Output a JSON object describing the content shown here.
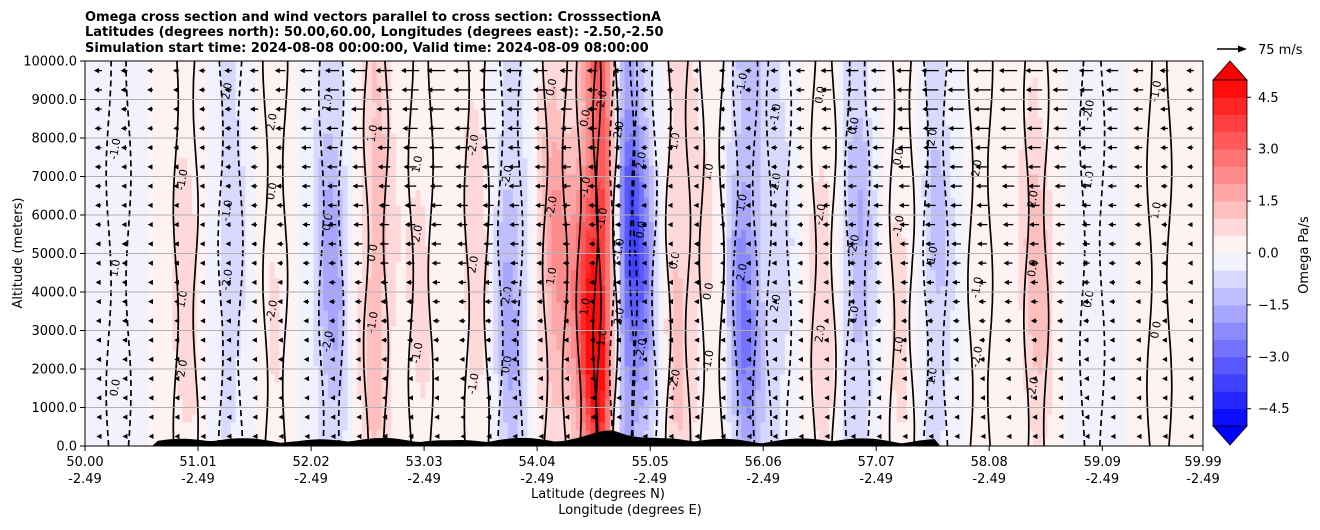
{
  "chart_data": {
    "type": "heatmap",
    "title_lines": [
      "Omega cross section and wind vectors parallel to cross section: CrosssectionA",
      "Latitudes (degrees north): 50.00,60.00, Longitudes (degrees east): -2.50,-2.50",
      "Simulation start time: 2024-08-08 00:00:00, Valid time: 2024-08-09 08:00:00"
    ],
    "xlabel_lat": "Latitude (degrees N)",
    "xlabel_lon": "Longitude (degrees E)",
    "ylabel": "Altitude (meters)",
    "x_ticks": [
      {
        "lat": "50.00",
        "lon": "-2.49",
        "value": 50.0
      },
      {
        "lat": "51.01",
        "lon": "-2.49",
        "value": 51.01
      },
      {
        "lat": "52.02",
        "lon": "-2.49",
        "value": 52.02
      },
      {
        "lat": "53.03",
        "lon": "-2.49",
        "value": 53.03
      },
      {
        "lat": "54.04",
        "lon": "-2.49",
        "value": 54.04
      },
      {
        "lat": "55.05",
        "lon": "-2.49",
        "value": 55.05
      },
      {
        "lat": "56.06",
        "lon": "-2.49",
        "value": 56.06
      },
      {
        "lat": "57.07",
        "lon": "-2.49",
        "value": 57.07
      },
      {
        "lat": "58.08",
        "lon": "-2.49",
        "value": 58.08
      },
      {
        "lat": "59.09",
        "lon": "-2.49",
        "value": 59.09
      },
      {
        "lat": "59.99",
        "lon": "-2.49",
        "value": 59.99
      }
    ],
    "xlim": [
      50.0,
      59.99
    ],
    "y_ticks": [
      "0.0",
      "1000.0",
      "2000.0",
      "3000.0",
      "4000.0",
      "5000.0",
      "6000.0",
      "7000.0",
      "8000.0",
      "9000.0",
      "10000.0"
    ],
    "ylim": [
      0,
      10000
    ],
    "grid": "horizontal",
    "colorbar": {
      "label": "Omega Pa/s",
      "range": [
        -5.0,
        5.0
      ],
      "tick_labels": [
        "4.5",
        "3.0",
        "1.5",
        "0.0",
        "−1.5",
        "−3.0",
        "−4.5"
      ],
      "tick_values": [
        4.5,
        3.0,
        1.5,
        0.0,
        -1.5,
        -3.0,
        -4.5
      ],
      "extend": "both",
      "colormap": "bwr"
    },
    "vector_key": {
      "label": "75 m/s"
    },
    "omega_columns": [
      {
        "lat": 50.3,
        "value": -0.3
      },
      {
        "lat": 50.9,
        "value": 0.8
      },
      {
        "lat": 51.3,
        "value": -0.9
      },
      {
        "lat": 51.7,
        "value": 0.5
      },
      {
        "lat": 52.2,
        "value": -1.6
      },
      {
        "lat": 52.6,
        "value": 1.5
      },
      {
        "lat": 53.0,
        "value": 0.6
      },
      {
        "lat": 53.5,
        "value": 0.9
      },
      {
        "lat": 53.8,
        "value": -1.6
      },
      {
        "lat": 54.2,
        "value": 1.8
      },
      {
        "lat": 54.5,
        "value": 2.4
      },
      {
        "lat": 54.65,
        "value": 5.0
      },
      {
        "lat": 54.8,
        "value": -4.0
      },
      {
        "lat": 55.0,
        "value": -1.5
      },
      {
        "lat": 55.3,
        "value": 1.3
      },
      {
        "lat": 55.6,
        "value": 0.5
      },
      {
        "lat": 55.9,
        "value": -2.4
      },
      {
        "lat": 56.2,
        "value": -0.8
      },
      {
        "lat": 56.6,
        "value": 0.9
      },
      {
        "lat": 56.9,
        "value": -1.5
      },
      {
        "lat": 57.3,
        "value": 0.7
      },
      {
        "lat": 57.6,
        "value": -1.2
      },
      {
        "lat": 58.0,
        "value": 0.2
      },
      {
        "lat": 58.5,
        "value": 1.2
      },
      {
        "lat": 59.0,
        "value": -0.3
      },
      {
        "lat": 59.6,
        "value": 0.4
      }
    ],
    "contour_labels": [
      "0.0",
      "1.0",
      "-1.0",
      "2.0",
      "-2.0"
    ],
    "wind_direction": "southward"
  }
}
